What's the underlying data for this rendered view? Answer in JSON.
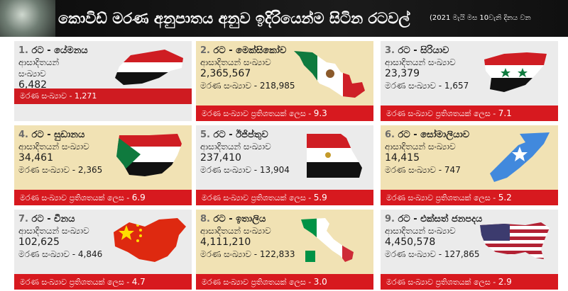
{
  "header": {
    "title": "කොවිඩ් මරණ අනුපාතය අනුව ඉදිරියෙන්ම සිටින රටවල්",
    "subtitle": "(2021 මැයි මස 10වැනි දිනය වන"
  },
  "colors": {
    "accent_red": "#d7191f",
    "card_tan": "#f1e2b4",
    "card_grey": "#ebebeb"
  },
  "cards": [
    {
      "num": "1.",
      "country": "රට - යේමනය",
      "cases_label": "ආසාදිතයන්",
      "cases_label2": "සංඛ්‍යාව",
      "cases": "6,482",
      "deaths_text": "මරණ සංඛ්‍යාව - 1,271",
      "pct_label": "",
      "pct": "",
      "flag_icon": "yemen-flag-map-icon"
    },
    {
      "num": "2.",
      "country": "රට - මෙක්සිකෝව",
      "cases_label": "ආසාදිතයන් සංඛ්‍යාව",
      "cases": "2,365,567",
      "deaths_text": "මරණ සංඛ්‍යාව - 218,985",
      "pct_label": "මරණ සංඛ්‍යාව ප්‍රතිශතයක් ලෙස -",
      "pct": "9.3",
      "flag_icon": "mexico-flag-map-icon"
    },
    {
      "num": "3.",
      "country": "රට - සිරියාව",
      "cases_label": "ආසාදිතයන් සංඛ්‍යාව",
      "cases": "23,379",
      "deaths_text": "මරණ සංඛ්‍යාව - 1,657",
      "pct_label": "මරණ සංඛ්‍යාව ප්‍රතිශතයක් ලෙස -",
      "pct": "7.1",
      "flag_icon": "syria-flag-map-icon"
    },
    {
      "num": "4.",
      "country": "රට - සුඩානය",
      "cases_label": "ආසාදිතයන් සංඛ්‍යාව",
      "cases": "34,461",
      "deaths_text": "මරණ සංඛ්‍යාව - 2,365",
      "pct_label": "මරණ සංඛ්‍යාව ප්‍රතිශතයක් ලෙස -",
      "pct": "6.9",
      "flag_icon": "sudan-flag-map-icon"
    },
    {
      "num": "5.",
      "country": "රට - ඊජිප්තුව",
      "cases_label": "ආසාදිතයන් සංඛ්‍යාව",
      "cases": "237,410",
      "deaths_text": "මරණ සංඛ්‍යාව - 13,904",
      "pct_label": "මරණ සංඛ්‍යාව ප්‍රතිශතයක් ලෙස -",
      "pct": "5.9",
      "flag_icon": "egypt-flag-map-icon"
    },
    {
      "num": "6.",
      "country": "රට - සෝමාලියාව",
      "cases_label": "ආසාදිතයන් සංඛ්‍යාව",
      "cases": "14,415",
      "deaths_text": "මරණ සංඛ්‍යාව - 747",
      "pct_label": "මරණ සංඛ්‍යාව ප්‍රතිශතයක් ලෙස -",
      "pct": "5.2",
      "flag_icon": "somalia-flag-map-icon"
    },
    {
      "num": "7.",
      "country": "රට - චීනය",
      "cases_label": "ආසාදිතයන් සංඛ්‍යාව",
      "cases": "102,625",
      "deaths_text": "මරණ සංඛ්‍යාව - 4,846",
      "pct_label": "මරණ සංඛ්‍යාව ප්‍රතිශතයක් ලෙස -",
      "pct": "4.7",
      "flag_icon": "china-flag-map-icon"
    },
    {
      "num": "8.",
      "country": "රට - ඉතාලිය",
      "cases_label": "ආසාදිතයන් සංඛ්‍යාව",
      "cases": "4,111,210",
      "deaths_text": "මරණ සංඛ්‍යාව - 122,833",
      "pct_label": "මරණ සංඛ්‍යාව ප්‍රතිශතයක් ලෙස -",
      "pct": "3.0",
      "flag_icon": "italy-flag-map-icon"
    },
    {
      "num": "9.",
      "country": "රට - එක්සත් ජනපදය",
      "cases_label": "ආසාදිතයන් සංඛ්‍යාව",
      "cases": "4,450,578",
      "deaths_text": "මරණ සංඛ්‍යාව - 127,865",
      "pct_label": "මරණ සංඛ්‍යාව ප්‍රතිශතයක් ලෙස -",
      "pct": "2.9",
      "flag_icon": "usa-flag-map-icon"
    }
  ]
}
